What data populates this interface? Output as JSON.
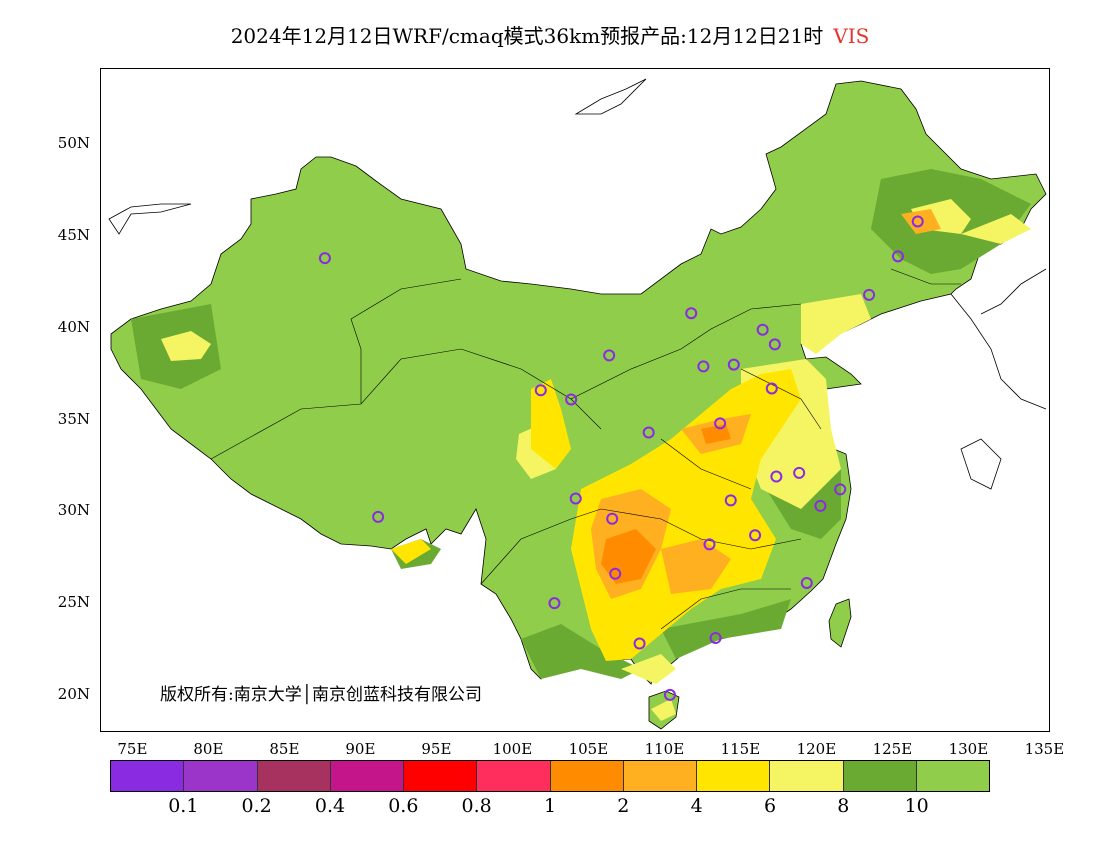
{
  "title": {
    "text": "2024年12月12日WRF/cmaq模式36km预报产品:12月12日21时",
    "variable": "VIS"
  },
  "map": {
    "lat_labels": [
      "50N",
      "45N",
      "40N",
      "35N",
      "30N",
      "25N",
      "20N"
    ],
    "lon_labels": [
      "75E",
      "80E",
      "85E",
      "90E",
      "95E",
      "100E",
      "105E",
      "110E",
      "115E",
      "120E",
      "125E",
      "130E",
      "135E"
    ],
    "copyright": "版权所有:南京大学│南京创蓝科技有限公司"
  },
  "colorbar": {
    "colors": [
      "#8a2be2",
      "#9b35c9",
      "#a8325f",
      "#c4168a",
      "#ff0000",
      "#ff2e5c",
      "#ff8c00",
      "#ffb020",
      "#ffe500",
      "#f5f564",
      "#6aaa32",
      "#8fcd4a"
    ],
    "labels": [
      "0.1",
      "0.2",
      "0.4",
      "0.6",
      "0.8",
      "1",
      "2",
      "4",
      "6",
      "8",
      "10"
    ]
  },
  "colors": {
    "vis_high": "#8fcd4a",
    "vis_8_10": "#6aaa32",
    "vis_6_8": "#f5f564",
    "vis_4_6": "#ffe500",
    "vis_2_4": "#ffb020",
    "vis_1_2": "#ff8c00",
    "station_marker": "#8a2be2"
  },
  "stations": [
    {
      "lon": 87.6,
      "lat": 43.8
    },
    {
      "lon": 91.1,
      "lat": 29.7
    },
    {
      "lon": 101.8,
      "lat": 36.6
    },
    {
      "lon": 103.8,
      "lat": 36.1
    },
    {
      "lon": 106.3,
      "lat": 38.5
    },
    {
      "lon": 111.7,
      "lat": 40.8
    },
    {
      "lon": 112.5,
      "lat": 37.9
    },
    {
      "lon": 114.5,
      "lat": 38.0
    },
    {
      "lon": 116.4,
      "lat": 39.9
    },
    {
      "lon": 117.2,
      "lat": 39.1
    },
    {
      "lon": 123.4,
      "lat": 41.8
    },
    {
      "lon": 125.3,
      "lat": 43.9
    },
    {
      "lon": 126.6,
      "lat": 45.8
    },
    {
      "lon": 117.0,
      "lat": 36.7
    },
    {
      "lon": 113.6,
      "lat": 34.8
    },
    {
      "lon": 108.9,
      "lat": 34.3
    },
    {
      "lon": 104.1,
      "lat": 30.7
    },
    {
      "lon": 106.5,
      "lat": 29.6
    },
    {
      "lon": 106.7,
      "lat": 26.6
    },
    {
      "lon": 102.7,
      "lat": 25.0
    },
    {
      "lon": 108.3,
      "lat": 22.8
    },
    {
      "lon": 113.3,
      "lat": 23.1
    },
    {
      "lon": 110.3,
      "lat": 20.0
    },
    {
      "lon": 112.9,
      "lat": 28.2
    },
    {
      "lon": 114.3,
      "lat": 30.6
    },
    {
      "lon": 115.9,
      "lat": 28.7
    },
    {
      "lon": 117.3,
      "lat": 31.9
    },
    {
      "lon": 118.8,
      "lat": 32.1
    },
    {
      "lon": 120.2,
      "lat": 30.3
    },
    {
      "lon": 121.5,
      "lat": 31.2
    },
    {
      "lon": 119.3,
      "lat": 26.1
    }
  ]
}
